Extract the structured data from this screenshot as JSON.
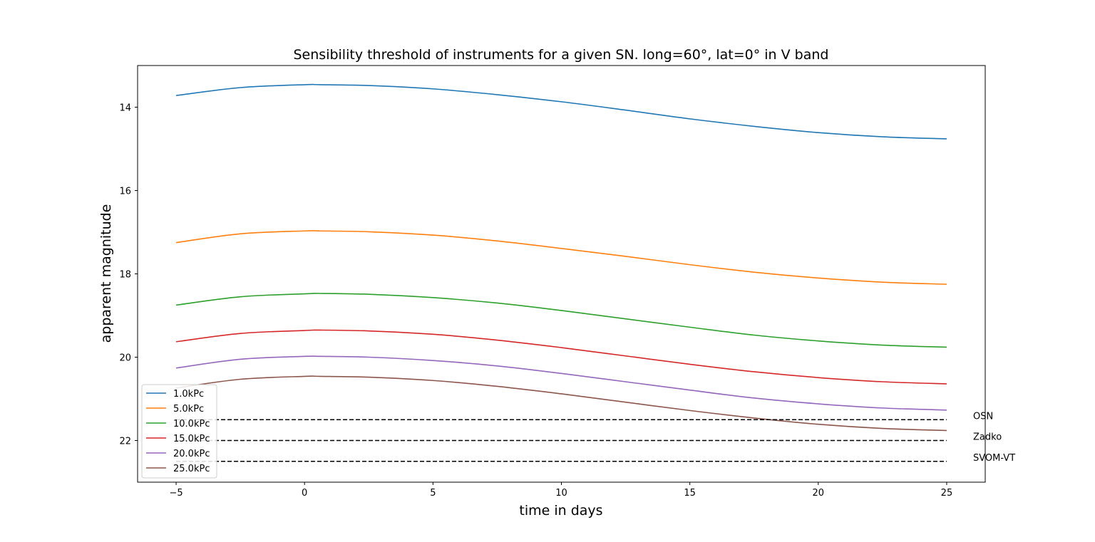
{
  "chart_data": {
    "type": "line",
    "title": "Sensibility threshold of instruments for a given SN. long=60°, lat=0° in V band",
    "xlabel": "time in days",
    "ylabel": "apparent magnitude",
    "xlim": [
      -6.5,
      26.5
    ],
    "ylim": [
      23.0,
      13.0
    ],
    "y_inverted": true,
    "x_ticks": [
      -5,
      0,
      5,
      10,
      15,
      20,
      25
    ],
    "x_tick_labels": [
      "−5",
      "0",
      "5",
      "10",
      "15",
      "20",
      "25"
    ],
    "y_ticks": [
      14,
      16,
      18,
      20,
      22
    ],
    "y_tick_labels": [
      "14",
      "16",
      "18",
      "20",
      "22"
    ],
    "grid": false,
    "legend_position": "lower-left",
    "series": [
      {
        "name": "1.0kPc",
        "color": "#1f77b4",
        "x": [
          -5,
          -2.5,
          0,
          0.6,
          2.5,
          5,
          7.5,
          10,
          12.5,
          15,
          17.5,
          20,
          22.5,
          25
        ],
        "y": [
          13.72,
          13.53,
          13.46,
          13.46,
          13.48,
          13.56,
          13.7,
          13.87,
          14.07,
          14.28,
          14.46,
          14.61,
          14.71,
          14.76
        ]
      },
      {
        "name": "5.0kPc",
        "color": "#ff7f0e",
        "x": [
          -5,
          -2.5,
          0,
          0.6,
          2.5,
          5,
          7.5,
          10,
          12.5,
          15,
          17.5,
          20,
          22.5,
          25
        ],
        "y": [
          17.25,
          17.04,
          16.97,
          16.97,
          16.99,
          17.07,
          17.21,
          17.39,
          17.58,
          17.78,
          17.96,
          18.1,
          18.2,
          18.25
        ]
      },
      {
        "name": "10.0kPc",
        "color": "#2ca02c",
        "x": [
          -5,
          -2.5,
          0,
          0.6,
          2.5,
          5,
          7.5,
          10,
          12.5,
          15,
          17.5,
          20,
          22.5,
          25
        ],
        "y": [
          18.75,
          18.55,
          18.48,
          18.47,
          18.49,
          18.57,
          18.7,
          18.88,
          19.08,
          19.28,
          19.47,
          19.61,
          19.71,
          19.76
        ]
      },
      {
        "name": "15.0kPc",
        "color": "#d62728",
        "x": [
          -5,
          -2.5,
          0,
          0.6,
          2.5,
          5,
          7.5,
          10,
          12.5,
          15,
          17.5,
          20,
          22.5,
          25
        ],
        "y": [
          19.63,
          19.43,
          19.36,
          19.35,
          19.37,
          19.45,
          19.59,
          19.77,
          19.97,
          20.17,
          20.35,
          20.49,
          20.59,
          20.64
        ]
      },
      {
        "name": "20.0kPc",
        "color": "#9467bd",
        "x": [
          -5,
          -2.5,
          0,
          0.6,
          2.5,
          5,
          7.5,
          10,
          12.5,
          15,
          17.5,
          20,
          22.5,
          25
        ],
        "y": [
          20.26,
          20.05,
          19.98,
          19.98,
          20.0,
          20.08,
          20.21,
          20.39,
          20.59,
          20.79,
          20.98,
          21.12,
          21.22,
          21.27
        ]
      },
      {
        "name": "25.0kPc",
        "color": "#8c564b",
        "x": [
          -5,
          -2.5,
          0,
          0.6,
          2.5,
          5,
          7.5,
          10,
          12.5,
          15,
          17.5,
          20,
          22.5,
          25
        ],
        "y": [
          20.74,
          20.53,
          20.46,
          20.46,
          20.48,
          20.56,
          20.7,
          20.88,
          21.08,
          21.28,
          21.46,
          21.61,
          21.71,
          21.76
        ]
      }
    ],
    "thresholds": [
      {
        "label": "OSN",
        "value": 21.5,
        "x_range": [
          -5,
          25
        ],
        "color": "#000000",
        "style": "dashed"
      },
      {
        "label": "Zadko",
        "value": 22.0,
        "x_range": [
          -5,
          25
        ],
        "color": "#000000",
        "style": "dashed"
      },
      {
        "label": "SVOM-VT",
        "value": 22.5,
        "x_range": [
          -5,
          25
        ],
        "color": "#000000",
        "style": "dashed"
      }
    ]
  }
}
